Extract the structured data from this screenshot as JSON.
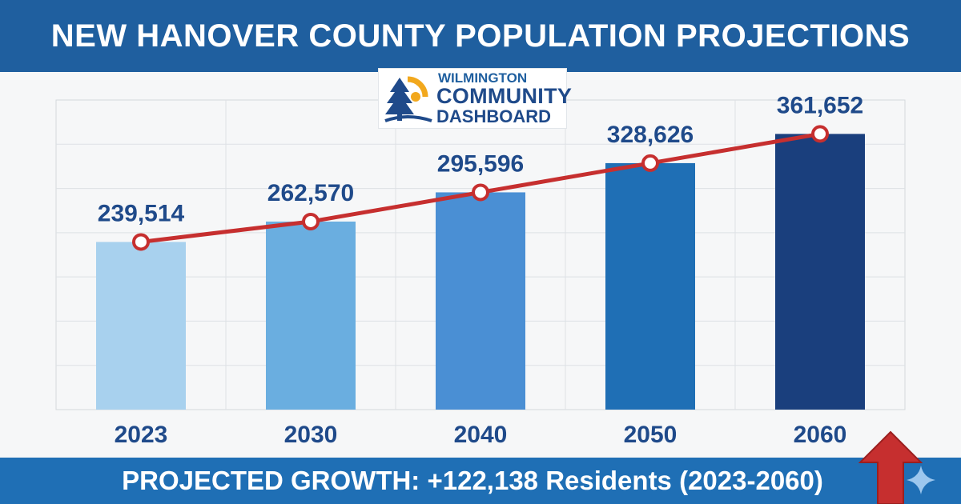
{
  "header": {
    "title": "NEW HANOVER COUNTY POPULATION PROJECTIONS"
  },
  "logo": {
    "line1": "WILMINGTON",
    "line2": "COMMUNITY",
    "line3": "DASHBOARD"
  },
  "footer": {
    "growth_text": "PROJECTED GROWTH: +122,138 Residents (2023-2060)"
  },
  "icons": {
    "arrow": "red-up-arrow-icon",
    "sparkle": "sparkle-icon",
    "logo": "tree-sun-icon"
  },
  "colors": {
    "title_bar": "#1f5f9f",
    "footer_bar": "#1f6fb5",
    "line": "#c62f2f",
    "label_text": "#1f4a8a",
    "bars": [
      "#a8d1ee",
      "#6aaee0",
      "#4a8fd4",
      "#1f6fb5",
      "#1a3f7d"
    ]
  },
  "chart_data": {
    "type": "bar",
    "categories": [
      "2023",
      "2030",
      "2040",
      "2050",
      "2060"
    ],
    "values": [
      239514,
      262570,
      295596,
      328626,
      361652
    ],
    "value_labels": [
      "239,514",
      "262,570",
      "295,596",
      "328,626",
      "361,652"
    ],
    "overlay_line": true,
    "title": "NEW HANOVER COUNTY POPULATION PROJECTIONS",
    "xlabel": "",
    "ylabel": "",
    "ylim": [
      50000,
      400000
    ],
    "grid": true,
    "legend": "none"
  }
}
